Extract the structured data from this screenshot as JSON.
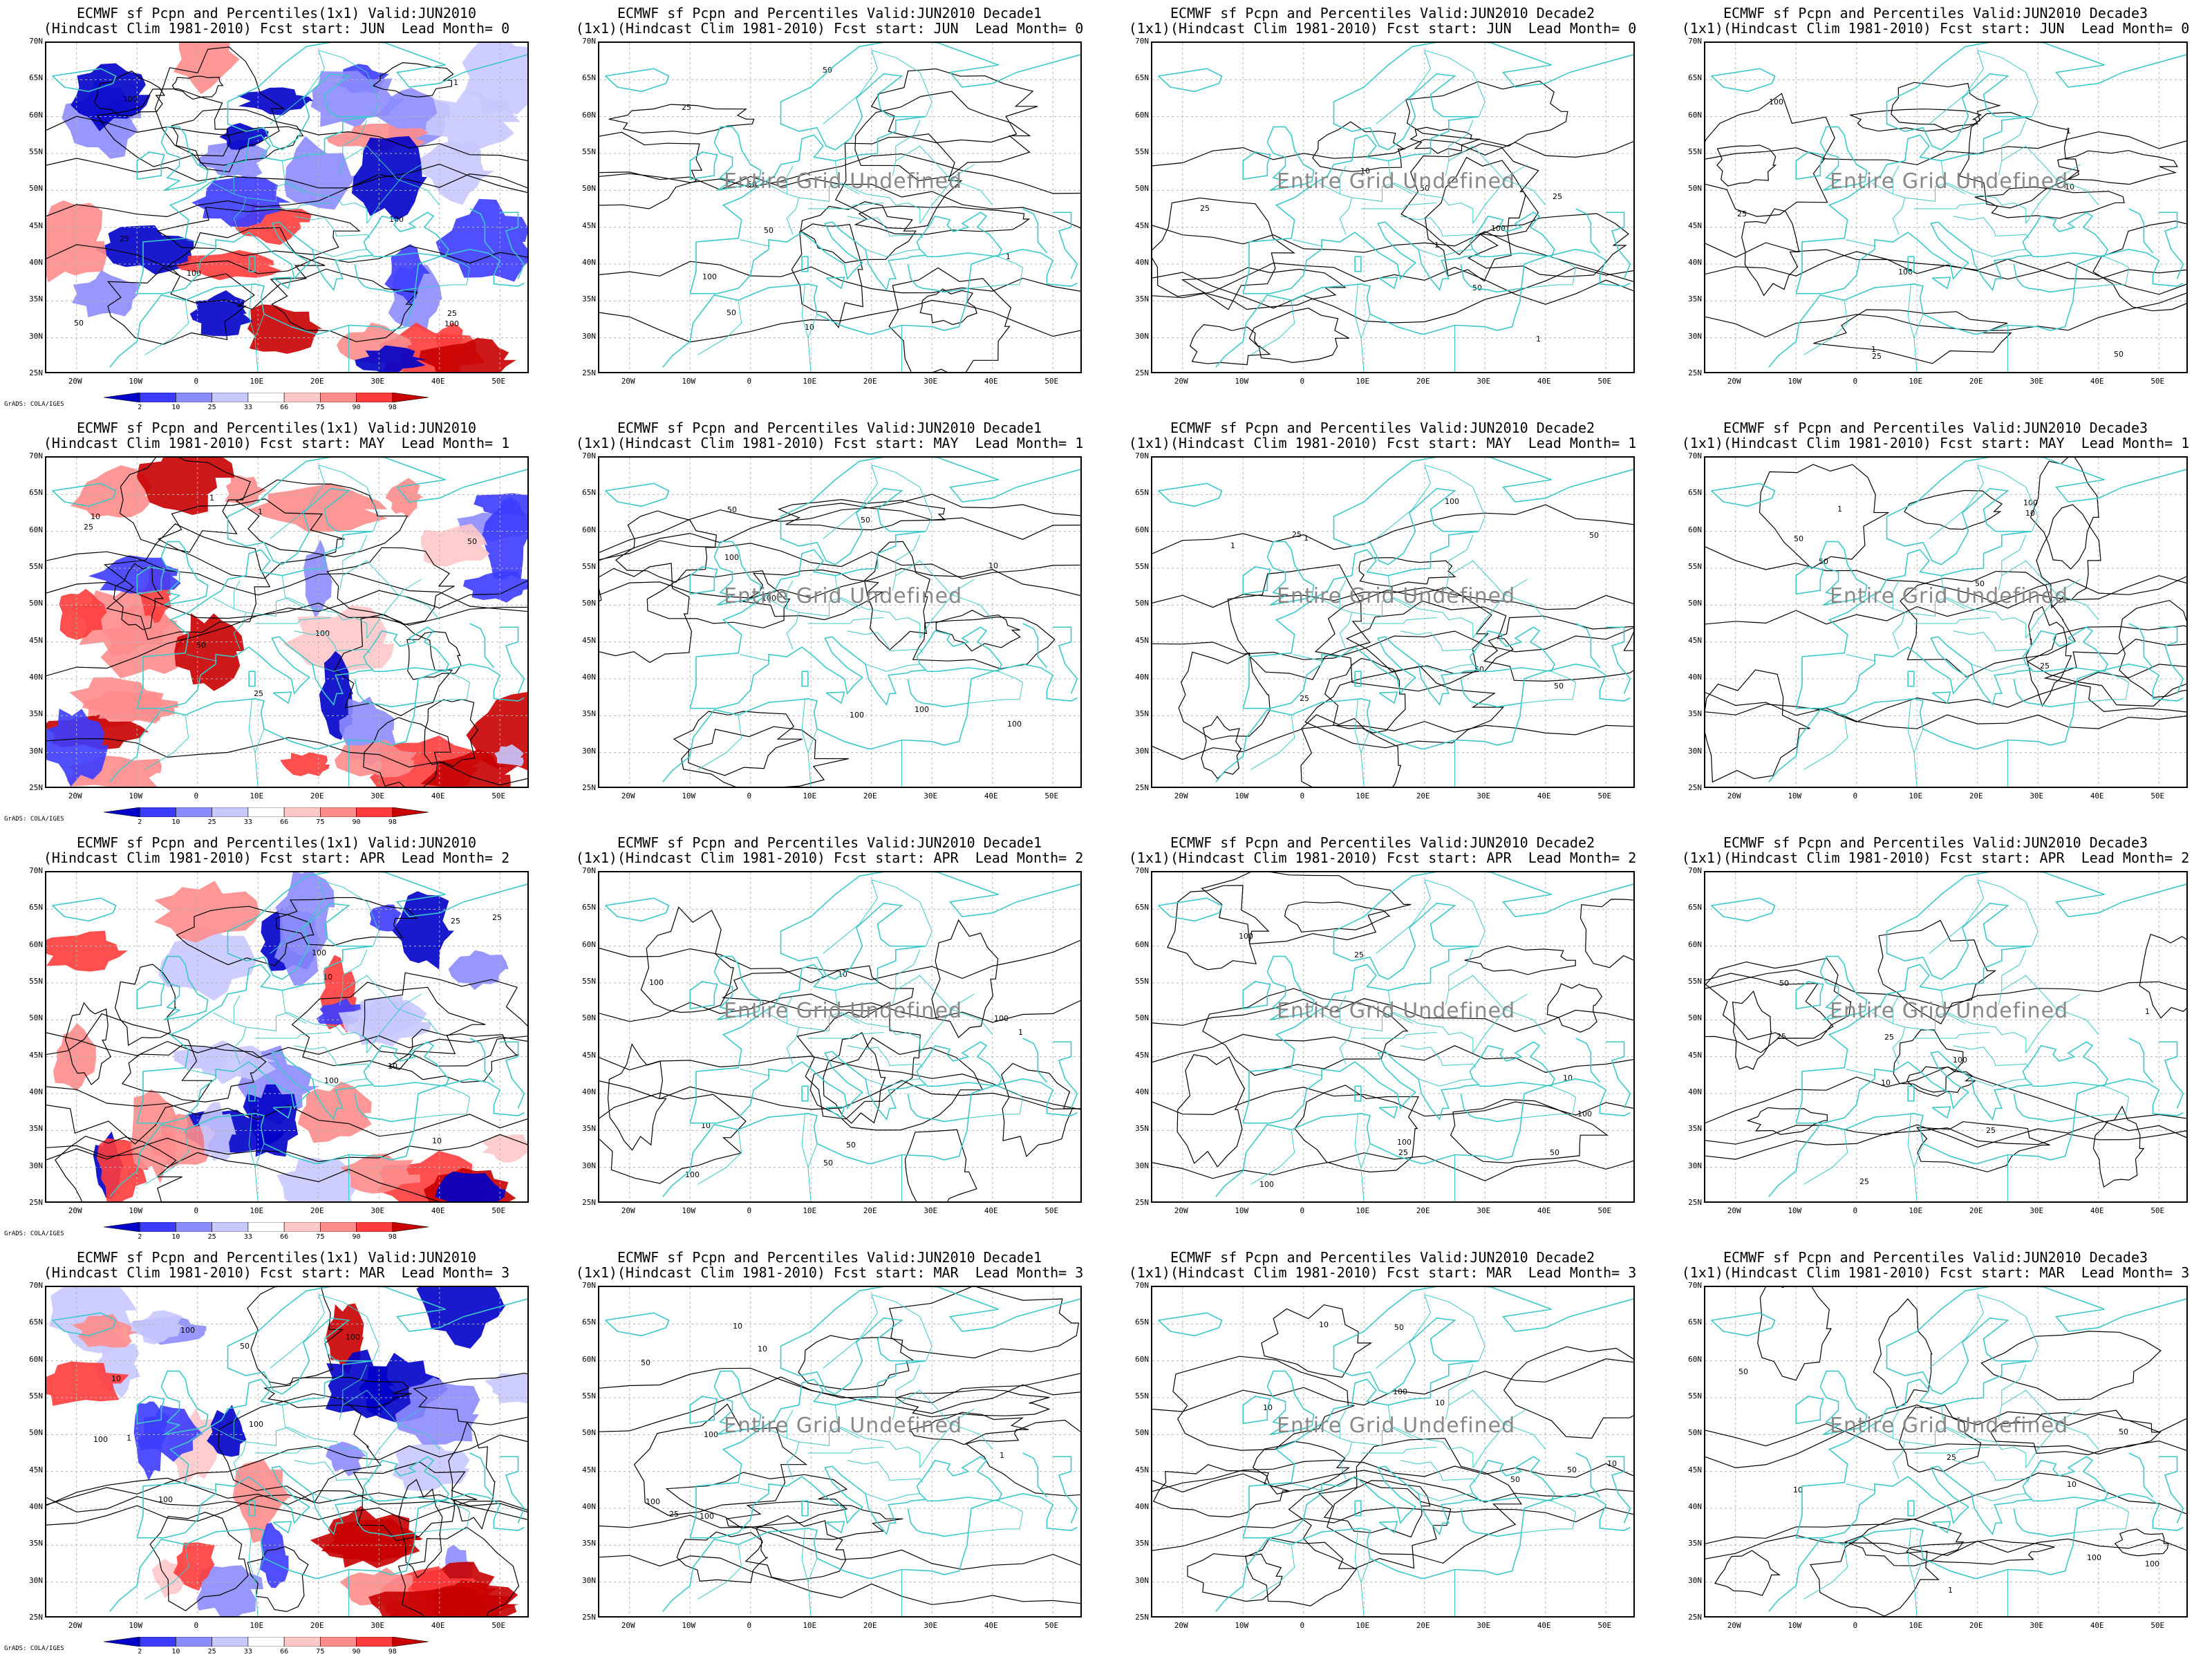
{
  "common": {
    "lat_labels": [
      "70N",
      "65N",
      "60N",
      "55N",
      "50N",
      "45N",
      "40N",
      "35N",
      "30N",
      "25N"
    ],
    "lon_labels": [
      "20W",
      "10W",
      "0",
      "10E",
      "20E",
      "30E",
      "40E",
      "50E"
    ],
    "undefined_text": "Entire Grid Undefined",
    "credit": "GrADS: COLA/IGES",
    "colorbar": {
      "labels": [
        "2",
        "10",
        "25",
        "33",
        "66",
        "75",
        "90",
        "98"
      ],
      "colors": [
        "#0000c8",
        "#3c3cff",
        "#8c8cff",
        "#c8c8ff",
        "#ffffff",
        "#ffc8c8",
        "#ff8c8c",
        "#ff3c3c",
        "#c80000"
      ]
    },
    "colors": {
      "coast": "#3cc8c8",
      "contour": "#000000",
      "grid": "#b4b4b4"
    }
  },
  "panels": [
    {
      "t1": "ECMWF sf Pcpn and Percentiles(1x1) Valid:JUN2010",
      "t2": "(Hindcast Clim 1981-2010) Fcst start: JUN  Lead Month= 0"
    },
    {
      "t1": "ECMWF sf Pcpn and Percentiles Valid:JUN2010 Decade1",
      "t2": "(1x1)(Hindcast Clim 1981-2010) Fcst start: JUN  Lead Month= 0"
    },
    {
      "t1": "ECMWF sf Pcpn and Percentiles Valid:JUN2010 Decade2",
      "t2": "(1x1)(Hindcast Clim 1981-2010) Fcst start: JUN  Lead Month= 0"
    },
    {
      "t1": "ECMWF sf Pcpn and Percentiles Valid:JUN2010 Decade3",
      "t2": "(1x1)(Hindcast Clim 1981-2010) Fcst start: JUN  Lead Month= 0"
    },
    {
      "t1": "ECMWF sf Pcpn and Percentiles(1x1) Valid:JUN2010",
      "t2": "(Hindcast Clim 1981-2010) Fcst start: MAY  Lead Month= 1"
    },
    {
      "t1": "ECMWF sf Pcpn and Percentiles Valid:JUN2010 Decade1",
      "t2": "(1x1)(Hindcast Clim 1981-2010) Fcst start: MAY  Lead Month= 1"
    },
    {
      "t1": "ECMWF sf Pcpn and Percentiles Valid:JUN2010 Decade2",
      "t2": "(1x1)(Hindcast Clim 1981-2010) Fcst start: MAY  Lead Month= 1"
    },
    {
      "t1": "ECMWF sf Pcpn and Percentiles Valid:JUN2010 Decade3",
      "t2": "(1x1)(Hindcast Clim 1981-2010) Fcst start: MAY  Lead Month= 1"
    },
    {
      "t1": "ECMWF sf Pcpn and Percentiles(1x1) Valid:JUN2010",
      "t2": "(Hindcast Clim 1981-2010) Fcst start: APR  Lead Month= 2"
    },
    {
      "t1": "ECMWF sf Pcpn and Percentiles Valid:JUN2010 Decade1",
      "t2": "(1x1)(Hindcast Clim 1981-2010) Fcst start: APR  Lead Month= 2"
    },
    {
      "t1": "ECMWF sf Pcpn and Percentiles Valid:JUN2010 Decade2",
      "t2": "(1x1)(Hindcast Clim 1981-2010) Fcst start: APR  Lead Month= 2"
    },
    {
      "t1": "ECMWF sf Pcpn and Percentiles Valid:JUN2010 Decade3",
      "t2": "(1x1)(Hindcast Clim 1981-2010) Fcst start: APR  Lead Month= 2"
    },
    {
      "t1": "ECMWF sf Pcpn and Percentiles(1x1) Valid:JUN2010",
      "t2": "(Hindcast Clim 1981-2010) Fcst start: MAR  Lead Month= 3"
    },
    {
      "t1": "ECMWF sf Pcpn and Percentiles Valid:JUN2010 Decade1",
      "t2": "(1x1)(Hindcast Clim 1981-2010) Fcst start: MAR  Lead Month= 3"
    },
    {
      "t1": "ECMWF sf Pcpn and Percentiles Valid:JUN2010 Decade2",
      "t2": "(1x1)(Hindcast Clim 1981-2010) Fcst start: MAR  Lead Month= 3"
    },
    {
      "t1": "ECMWF sf Pcpn and Percentiles Valid:JUN2010 Decade3",
      "t2": "(1x1)(Hindcast Clim 1981-2010) Fcst start: MAR  Lead Month= 3"
    }
  ]
}
